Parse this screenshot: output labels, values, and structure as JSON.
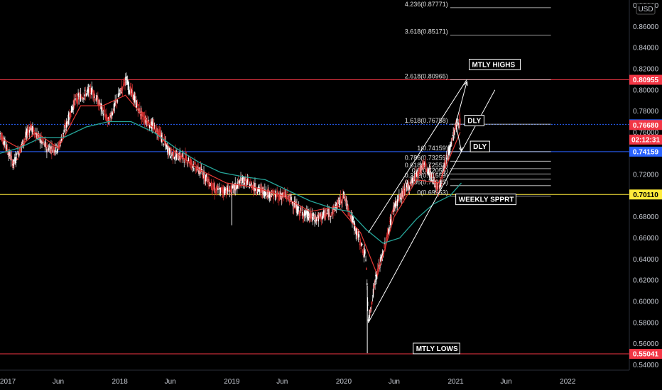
{
  "chart_data": {
    "type": "candlestick",
    "currency": "USD",
    "y_axis": {
      "range": [
        0.535,
        0.885
      ],
      "ticks": [
        "0.88000",
        "0.86000",
        "0.84000",
        "0.82000",
        "0.80000",
        "0.78000",
        "0.76000",
        "0.74000",
        "0.72000",
        "0.70000",
        "0.68000",
        "0.66000",
        "0.64000",
        "0.62000",
        "0.60000",
        "0.58000",
        "0.56000",
        "0.54000"
      ]
    },
    "x_axis": {
      "ticks": [
        {
          "label": "2017",
          "t": 2017.0
        },
        {
          "label": "Jun",
          "t": 2017.45
        },
        {
          "label": "2018",
          "t": 2018.0
        },
        {
          "label": "Jun",
          "t": 2018.45
        },
        {
          "label": "2019",
          "t": 2019.0
        },
        {
          "label": "Jun",
          "t": 2019.45
        },
        {
          "label": "2020",
          "t": 2020.0
        },
        {
          "label": "Jun",
          "t": 2020.45
        },
        {
          "label": "2021",
          "t": 2021.0
        },
        {
          "label": "Jun",
          "t": 2021.45
        },
        {
          "label": "2022",
          "t": 2022.0
        }
      ],
      "range": [
        2016.93,
        2022.55
      ]
    },
    "price_path": [
      [
        2016.93,
        0.76
      ],
      [
        2017.05,
        0.73
      ],
      [
        2017.2,
        0.765
      ],
      [
        2017.35,
        0.745
      ],
      [
        2017.45,
        0.745
      ],
      [
        2017.6,
        0.79
      ],
      [
        2017.75,
        0.8
      ],
      [
        2017.9,
        0.77
      ],
      [
        2018.05,
        0.81
      ],
      [
        2018.2,
        0.775
      ],
      [
        2018.35,
        0.76
      ],
      [
        2018.45,
        0.74
      ],
      [
        2018.6,
        0.735
      ],
      [
        2018.75,
        0.72
      ],
      [
        2018.85,
        0.705
      ],
      [
        2019.0,
        0.705
      ],
      [
        2019.1,
        0.715
      ],
      [
        2019.25,
        0.705
      ],
      [
        2019.4,
        0.7
      ],
      [
        2019.5,
        0.7
      ],
      [
        2019.6,
        0.685
      ],
      [
        2019.75,
        0.678
      ],
      [
        2019.9,
        0.685
      ],
      [
        2020.0,
        0.7
      ],
      [
        2020.1,
        0.67
      ],
      [
        2020.2,
        0.64
      ],
      [
        2020.22,
        0.58
      ],
      [
        2020.28,
        0.62
      ],
      [
        2020.35,
        0.645
      ],
      [
        2020.45,
        0.69
      ],
      [
        2020.55,
        0.705
      ],
      [
        2020.65,
        0.72
      ],
      [
        2020.72,
        0.73
      ],
      [
        2020.8,
        0.715
      ],
      [
        2020.85,
        0.705
      ],
      [
        2020.92,
        0.735
      ],
      [
        2021.0,
        0.765
      ],
      [
        2021.04,
        0.77
      ]
    ],
    "moving_average_20": [
      [
        2016.93,
        0.755
      ],
      [
        2017.1,
        0.745
      ],
      [
        2017.25,
        0.76
      ],
      [
        2017.45,
        0.745
      ],
      [
        2017.65,
        0.785
      ],
      [
        2017.85,
        0.785
      ],
      [
        2018.05,
        0.795
      ],
      [
        2018.25,
        0.77
      ],
      [
        2018.45,
        0.745
      ],
      [
        2018.7,
        0.725
      ],
      [
        2018.95,
        0.712
      ],
      [
        2019.2,
        0.708
      ],
      [
        2019.45,
        0.7
      ],
      [
        2019.7,
        0.685
      ],
      [
        2019.95,
        0.69
      ],
      [
        2020.15,
        0.665
      ],
      [
        2020.3,
        0.625
      ],
      [
        2020.45,
        0.68
      ],
      [
        2020.65,
        0.715
      ],
      [
        2020.85,
        0.712
      ],
      [
        2021.04,
        0.76
      ]
    ],
    "moving_average_50": [
      [
        2016.93,
        0.74
      ],
      [
        2017.1,
        0.745
      ],
      [
        2017.3,
        0.755
      ],
      [
        2017.5,
        0.755
      ],
      [
        2017.7,
        0.765
      ],
      [
        2017.9,
        0.77
      ],
      [
        2018.1,
        0.77
      ],
      [
        2018.3,
        0.76
      ],
      [
        2018.5,
        0.745
      ],
      [
        2018.7,
        0.732
      ],
      [
        2018.9,
        0.722
      ],
      [
        2019.1,
        0.718
      ],
      [
        2019.3,
        0.715
      ],
      [
        2019.5,
        0.705
      ],
      [
        2019.7,
        0.695
      ],
      [
        2019.9,
        0.688
      ],
      [
        2020.05,
        0.685
      ],
      [
        2020.2,
        0.668
      ],
      [
        2020.35,
        0.655
      ],
      [
        2020.5,
        0.66
      ],
      [
        2020.65,
        0.678
      ],
      [
        2020.8,
        0.692
      ],
      [
        2020.95,
        0.7
      ],
      [
        2021.05,
        0.712
      ]
    ],
    "fib_levels": [
      {
        "label": "4.236(0.87771)",
        "value": 0.87771
      },
      {
        "label": "3.618(0.85171)",
        "value": 0.85171
      },
      {
        "label": "2.618(0.80965)",
        "value": 0.80965
      },
      {
        "label": "1.618(0.76758)",
        "value": 0.76758
      },
      {
        "label": "1(0.74159)",
        "value": 0.74159
      },
      {
        "label": "0.786(0.73259)",
        "value": 0.73259
      },
      {
        "label": "0.618(0.72552)",
        "value": 0.72552
      },
      {
        "label": "0.5(0.72056)",
        "value": 0.72056
      },
      {
        "label": "0.382(0.71559)",
        "value": 0.71559
      },
      {
        "label": "0.236(0.70945)",
        "value": 0.70945
      },
      {
        "label": "0(0.69953)",
        "value": 0.69953
      }
    ],
    "fib_range": [
      2020.95,
      2021.85
    ],
    "horizontal_lines": [
      {
        "name": "mtly-highs-line",
        "value": 0.80955,
        "color": "#f23645"
      },
      {
        "name": "dly-line",
        "value": 0.76743,
        "color": "#2962ff"
      },
      {
        "name": "fib1-line",
        "value": 0.74159,
        "color": "#2962ff"
      },
      {
        "name": "weekly-support-line",
        "value": 0.7011,
        "color": "#ffeb3b"
      },
      {
        "name": "mtly-lows-line",
        "value": 0.55041,
        "color": "#f23645"
      }
    ],
    "channel": {
      "upper": [
        [
          2020.22,
          0.665
        ],
        [
          2021.1,
          0.81
        ]
      ],
      "lower": [
        [
          2020.22,
          0.58
        ],
        [
          2021.35,
          0.8
        ]
      ]
    },
    "arrows": [
      {
        "from": [
          2021.0,
          0.768
        ],
        "to": [
          2021.1,
          0.808
        ]
      },
      {
        "from": [
          2021.0,
          0.768
        ],
        "to": [
          2021.05,
          0.742
        ]
      }
    ],
    "annotations": [
      {
        "text": "MTLY HIGHS",
        "t": 2021.12,
        "y": 0.824
      },
      {
        "text": "DLY",
        "t": 2021.08,
        "y": 0.771
      },
      {
        "text": "DLY",
        "t": 2021.13,
        "y": 0.7465
      },
      {
        "text": "WEEKLY SPPRT",
        "t": 2021.0,
        "y": 0.6965
      },
      {
        "text": "MTLY LOWS",
        "t": 2020.62,
        "y": 0.5555
      }
    ],
    "price_tags": [
      {
        "text": "0.80955",
        "value": 0.80955,
        "bg": "#f23645",
        "fg": "#ffffff"
      },
      {
        "text": "0.76743",
        "value": 0.76743,
        "bg": "#2962ff",
        "fg": "#ffffff"
      },
      {
        "text": "0.76680",
        "value": 0.7668,
        "bg": "#f23645",
        "fg": "#ffffff"
      },
      {
        "text": "02:12:31",
        "value": 0.753,
        "bg": "#f23645",
        "fg": "#ffffff"
      },
      {
        "text": "0.74159",
        "value": 0.74159,
        "bg": "#2962ff",
        "fg": "#ffffff"
      },
      {
        "text": "0.70110",
        "value": 0.7011,
        "bg": "#ffeb3b",
        "fg": "#000000"
      },
      {
        "text": "0.55041",
        "value": 0.55041,
        "bg": "#f23645",
        "fg": "#ffffff"
      }
    ],
    "colors": {
      "background": "#000000",
      "candle_up": "#ffffff",
      "candle_down": "#d32f2f",
      "ma_fast": "#e53935",
      "ma_slow": "#26a69a",
      "axis_text": "#c8ccd4",
      "fib_line": "#ffffff",
      "channel": "#ffffff"
    }
  }
}
